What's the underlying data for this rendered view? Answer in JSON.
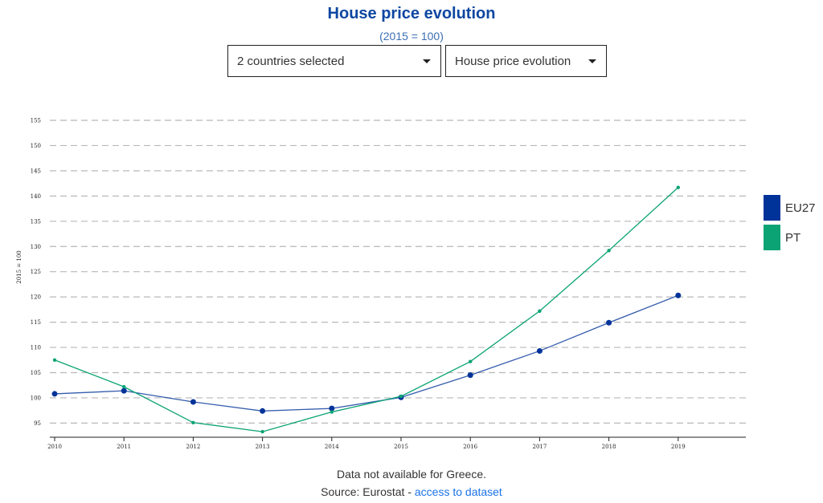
{
  "header": {
    "title": "House price evolution",
    "subtitle": "(2015 = 100)"
  },
  "controls": {
    "country_select": "2 countries selected",
    "indicator_select": "House price evolution"
  },
  "footer": {
    "note": "Data not available for Greece.",
    "source_prefix": "Source: Eurostat - ",
    "source_link": "access to dataset"
  },
  "chart_data": {
    "type": "line",
    "x": [
      "2010",
      "2011",
      "2012",
      "2013",
      "2014",
      "2015",
      "2016",
      "2017",
      "2018",
      "2019"
    ],
    "ylabel": "2015 = 100",
    "ylim": [
      92,
      155
    ],
    "yticks": [
      95,
      100,
      105,
      110,
      115,
      120,
      125,
      130,
      135,
      140,
      145,
      150,
      155
    ],
    "grid": true,
    "legend_position": "right",
    "series": [
      {
        "name": "EU27",
        "color": "#003399",
        "values": [
          100.8,
          101.4,
          99.2,
          97.4,
          97.9,
          100.1,
          104.5,
          109.3,
          114.9,
          120.3
        ]
      },
      {
        "name": "PT",
        "color": "#0ba374",
        "values": [
          107.5,
          102.2,
          95.1,
          93.3,
          97.2,
          100.3,
          107.2,
          117.2,
          129.2,
          141.7
        ]
      }
    ]
  }
}
